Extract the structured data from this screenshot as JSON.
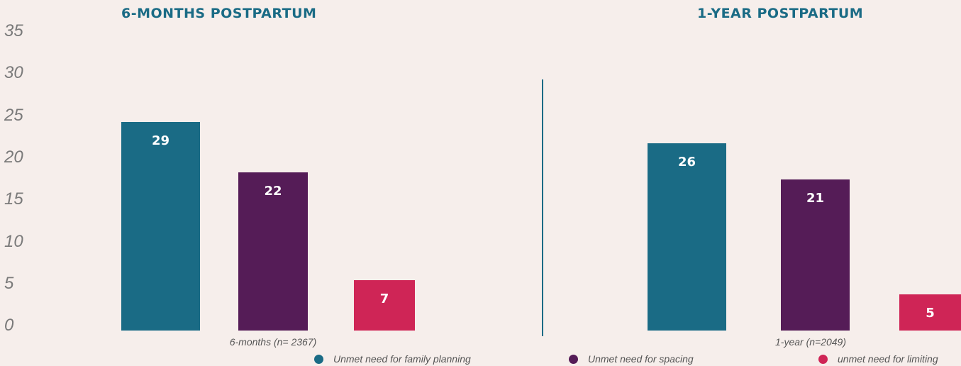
{
  "colors": {
    "background": "#f6eeeb",
    "title": "#1a6b85",
    "family_planning": "#1a6b85",
    "spacing": "#551c57",
    "limiting": "#cf2556",
    "divider": "#1a6b85"
  },
  "chart_data": {
    "type": "bar",
    "ylim": [
      0,
      35
    ],
    "yticks": [
      "35",
      "30",
      "25",
      "20",
      "15",
      "10",
      "5",
      "0"
    ],
    "panels": [
      {
        "title": "6-MONTHS POSTPARTUM",
        "xlabel": "6-months (n= 2367)",
        "values": [
          29,
          22,
          7
        ],
        "value_labels": [
          "29",
          "22",
          "7"
        ]
      },
      {
        "title": "1-YEAR POSTPARTUM",
        "xlabel": "1-year (n=2049)",
        "values": [
          26,
          21,
          5
        ],
        "value_labels": [
          "26",
          "21",
          "5"
        ]
      }
    ],
    "series": [
      {
        "name": "Unmet need for family planning"
      },
      {
        "name": "Unmet need for spacing"
      },
      {
        "name": "unmet need for limiting"
      }
    ],
    "legend_position": "bottom"
  }
}
